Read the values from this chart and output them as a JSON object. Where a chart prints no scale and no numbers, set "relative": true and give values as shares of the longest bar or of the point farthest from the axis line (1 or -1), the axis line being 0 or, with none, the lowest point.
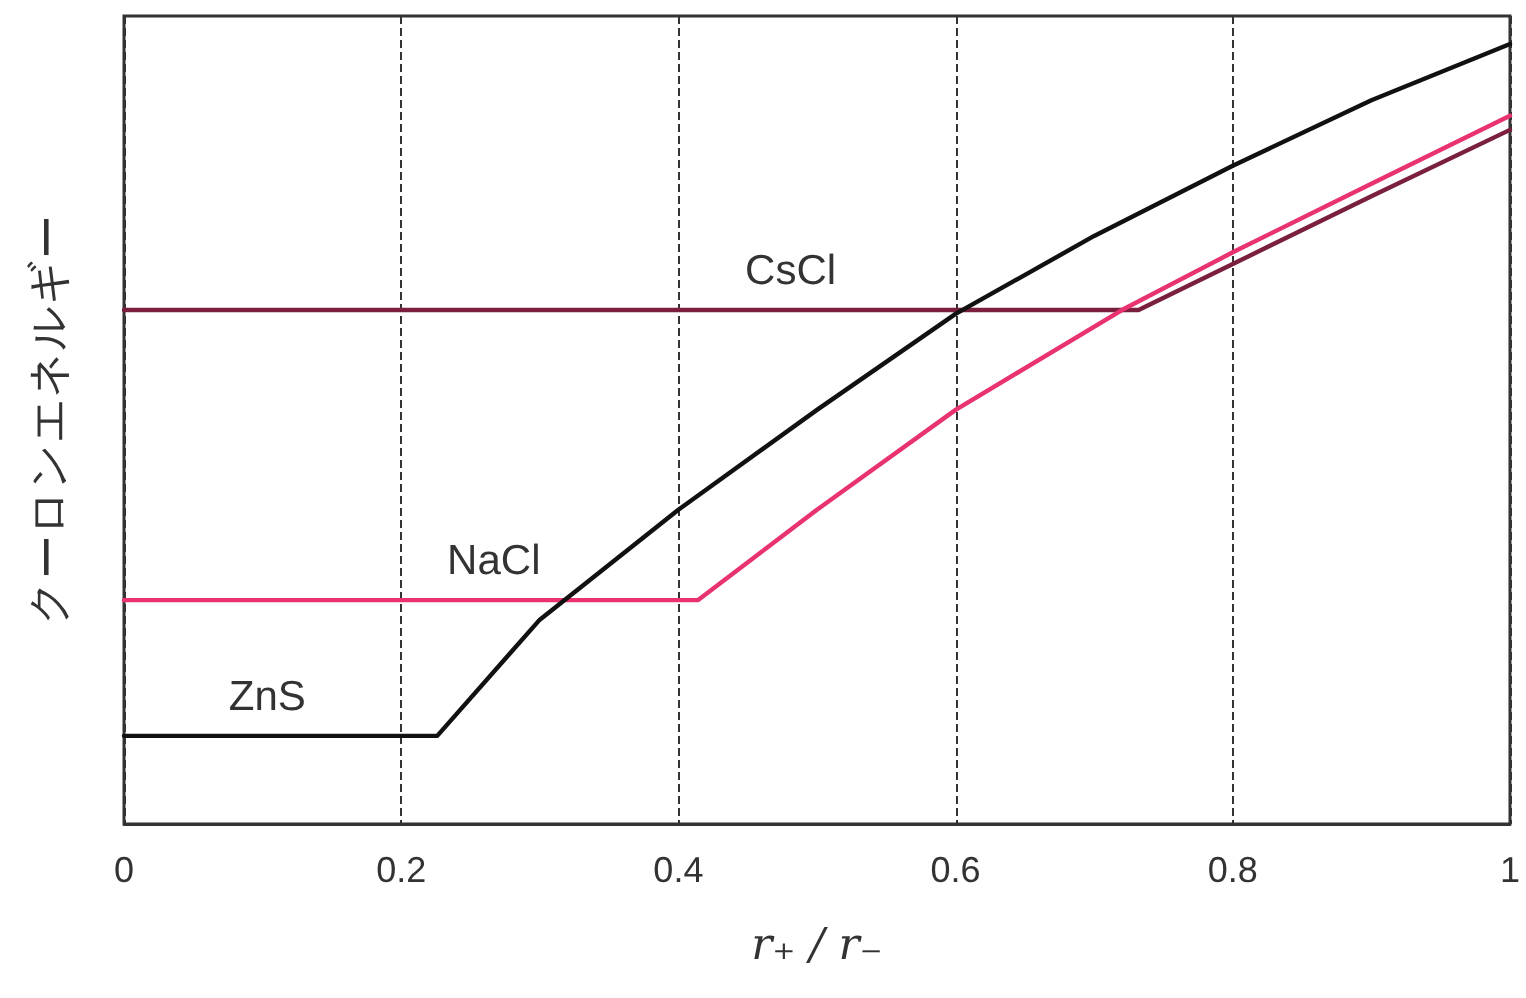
{
  "chart_data": {
    "type": "line",
    "relative": true,
    "xlabel": "r₊ / r₋",
    "ylabel": "クーロンエネルギー",
    "xlim": [
      0,
      1
    ],
    "xticks": [
      0,
      0.2,
      0.4,
      0.6,
      0.8,
      1
    ],
    "grid": "x",
    "legend": false,
    "marker": "none",
    "line_style": "solid",
    "series": [
      {
        "name": "ZnS",
        "color": "#111111",
        "x": [
          0,
          0.226,
          0.3,
          0.4,
          0.5,
          0.6,
          0.7,
          0.8,
          0.9,
          1
        ],
        "values": [
          0.113,
          0.113,
          0.262,
          0.403,
          0.531,
          0.654,
          0.754,
          0.844,
          0.928,
          1
        ]
      },
      {
        "name": "NaCl",
        "color": "#e8336e",
        "x": [
          0,
          0.414,
          0.5,
          0.6,
          0.72,
          0.8,
          0.9,
          1
        ],
        "values": [
          0.287,
          0.287,
          0.403,
          0.531,
          0.659,
          0.733,
          0.821,
          0.908
        ]
      },
      {
        "name": "CsCl",
        "color": "#7a1f3d",
        "x": [
          0,
          0.732,
          0.8,
          0.9,
          1
        ],
        "values": [
          0.659,
          0.659,
          0.718,
          0.805,
          0.89
        ]
      }
    ]
  }
}
